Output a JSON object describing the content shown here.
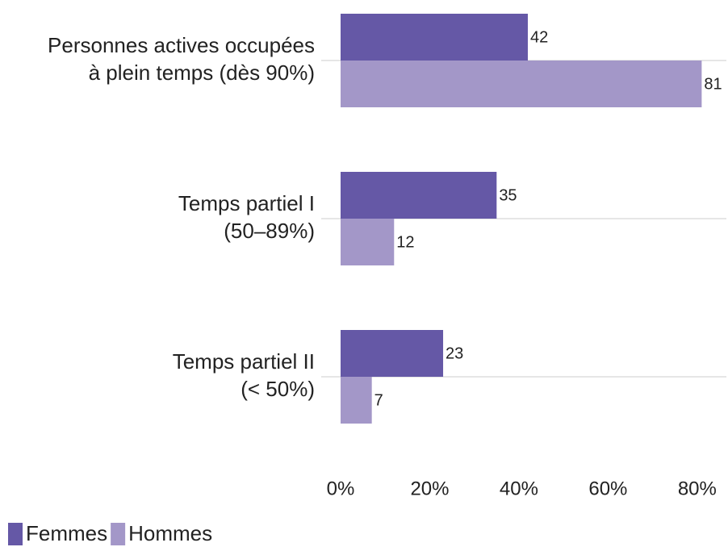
{
  "chart_data": {
    "type": "hbar",
    "categories": [
      [
        "Personnes actives occupées",
        "à plein temps (dès 90%)"
      ],
      [
        "Temps partiel I",
        "(50–89%)"
      ],
      [
        "Temps partiel II",
        "(< 50%)"
      ]
    ],
    "series": [
      {
        "name": "Femmes",
        "color": "#6558a6",
        "values": [
          42,
          35,
          23
        ]
      },
      {
        "name": "Hommes",
        "color": "#a397c8",
        "values": [
          81,
          12,
          7
        ]
      }
    ],
    "xlim": [
      0,
      86
    ],
    "xticks": [
      {
        "value": 0,
        "label": "0%"
      },
      {
        "value": 20,
        "label": "20%"
      },
      {
        "value": 40,
        "label": "40%"
      },
      {
        "value": 60,
        "label": "60%"
      },
      {
        "value": 80,
        "label": "80%"
      }
    ],
    "grid": true
  }
}
